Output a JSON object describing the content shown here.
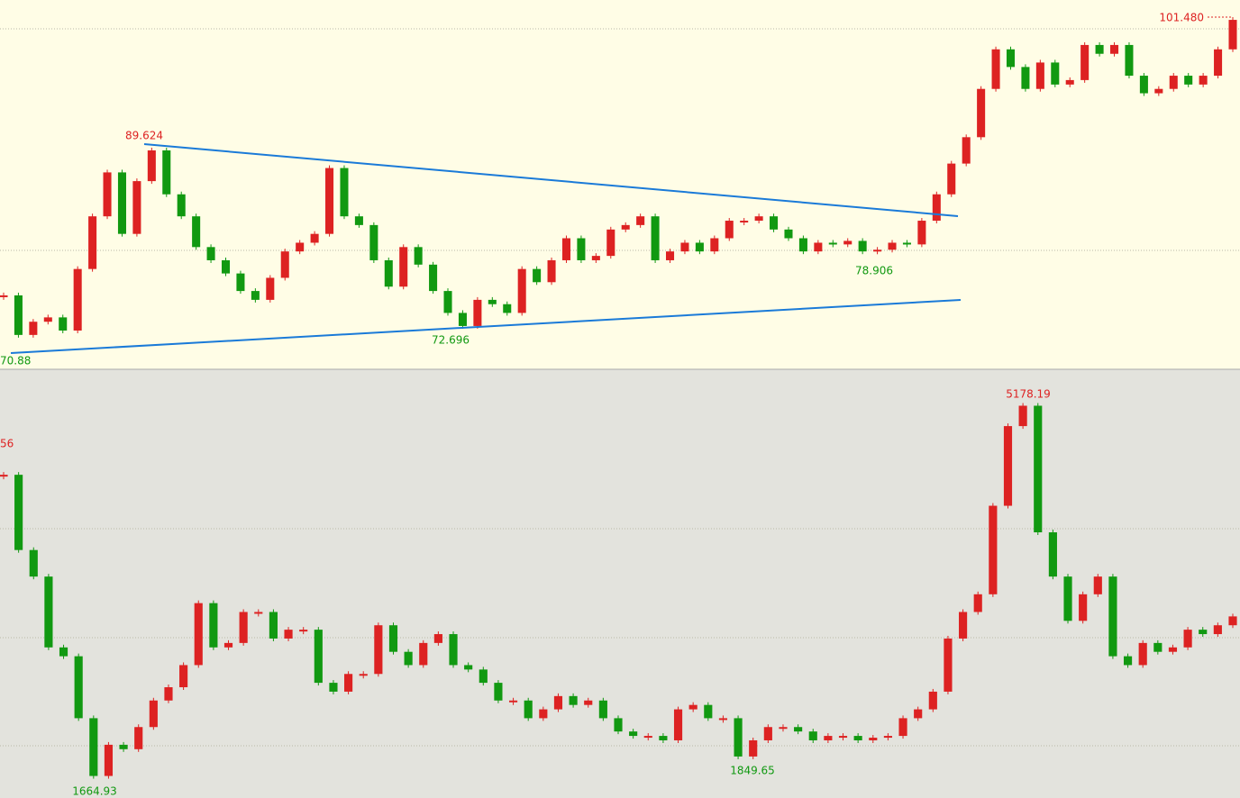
{
  "chart_data": [
    {
      "type": "candlestick",
      "up_color": "#dd2222",
      "down_color": "#119911",
      "ylim": [
        68.97,
        102.84
      ],
      "annotations": [
        "89.624",
        "72.696",
        "78.906",
        "101.480",
        "70.88"
      ],
      "values": [
        75.58,
        71.86,
        73.1,
        73.51,
        72.27,
        78.06,
        83.01,
        87.14,
        81.36,
        86.32,
        89.21,
        85.08,
        83.01,
        80.12,
        78.88,
        77.64,
        75.99,
        75.16,
        77.23,
        79.71,
        80.53,
        81.36,
        87.55,
        83.01,
        82.19,
        78.88,
        76.4,
        80.12,
        78.47,
        75.99,
        73.93,
        72.7,
        75.16,
        74.75,
        73.93,
        78.06,
        76.82,
        78.88,
        80.95,
        78.88,
        79.29,
        81.77,
        82.19,
        83.01,
        78.88,
        79.71,
        80.53,
        79.71,
        80.95,
        82.6,
        82.6,
        83.01,
        81.77,
        80.95,
        79.71,
        80.53,
        80.37,
        80.7,
        79.71,
        79.87,
        80.53,
        80.37,
        82.6,
        85.08,
        87.97,
        90.45,
        94.99,
        98.71,
        97.05,
        94.99,
        97.47,
        95.4,
        95.82,
        99.12,
        98.29,
        99.12,
        96.23,
        94.58,
        94.99,
        96.23,
        95.4,
        96.23,
        98.71,
        101.48
      ]
    },
    {
      "type": "candlestick",
      "up_color": "#dd2222",
      "down_color": "#119911",
      "ylim": [
        1490,
        5490
      ],
      "annotations": [
        "5178.19",
        "56",
        "1849.65",
        "1664.93"
      ],
      "values": [
        4523,
        3809,
        3557,
        2885,
        2801,
        2213,
        1664.93,
        1961,
        1919,
        2129,
        2381,
        2507,
        2717,
        3305,
        2885,
        2927,
        3221,
        3221,
        2969,
        3053,
        3053,
        2549,
        2465,
        2633,
        2633,
        3095,
        2843,
        2717,
        2927,
        3011,
        2717,
        2675,
        2549,
        2381,
        2381,
        2213,
        2297,
        2423,
        2339,
        2381,
        2213,
        2087,
        2045,
        2045,
        2003,
        2297,
        2339,
        2213,
        2213,
        1849.65,
        2003,
        2129,
        2129,
        2087,
        2003,
        2045,
        2045,
        2003,
        2028,
        2045,
        2213,
        2297,
        2465,
        2969,
        3221,
        3389,
        4229,
        4985,
        5178.19,
        3977,
        3557,
        3137,
        3389,
        3557,
        2801,
        2717,
        2927,
        2843,
        2885,
        3053,
        3011,
        3095,
        3179
      ]
    }
  ]
}
